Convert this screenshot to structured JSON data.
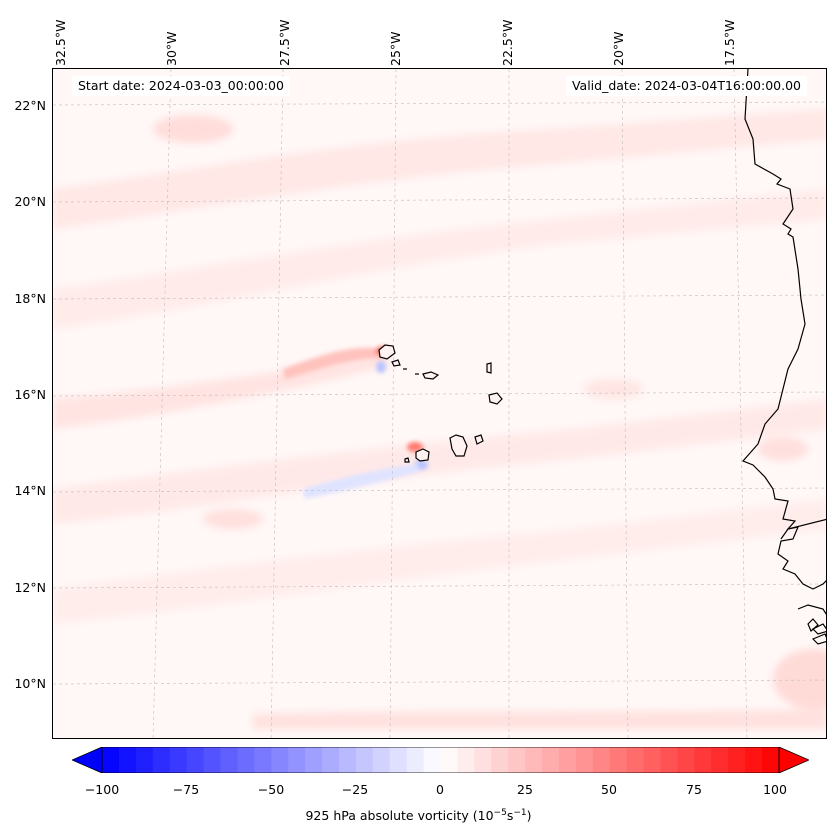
{
  "header": {
    "start_date": "Start date: 2024-03-03_00:00:00",
    "valid_date": "Valid_date: 2024-03-04T16:00:00.00"
  },
  "axes": {
    "lon_labels": [
      "32.5°W",
      "30°W",
      "27.5°W",
      "25°W",
      "22.5°W",
      "20°W",
      "17.5°W"
    ],
    "lat_labels": [
      "22°N",
      "20°N",
      "18°N",
      "16°N",
      "14°N",
      "12°N",
      "10°N"
    ]
  },
  "colorbar": {
    "ticks": [
      "−100",
      "−75",
      "−50",
      "−25",
      "0",
      "25",
      "50",
      "75",
      "100"
    ],
    "label_prefix": "925 hPa absolute vorticity (10",
    "label_exp1": "−5",
    "label_mid": "s",
    "label_exp2": "−1",
    "label_suffix": ")",
    "min": -100,
    "max": 100,
    "levels": 41,
    "color_neg": "#0000ff",
    "color_zero": "#ffffff",
    "color_pos": "#ff0000"
  },
  "map": {
    "background_color": "#fff8f7",
    "coastline_color": "#000000",
    "gridline_color": "#bdbdbd"
  }
}
